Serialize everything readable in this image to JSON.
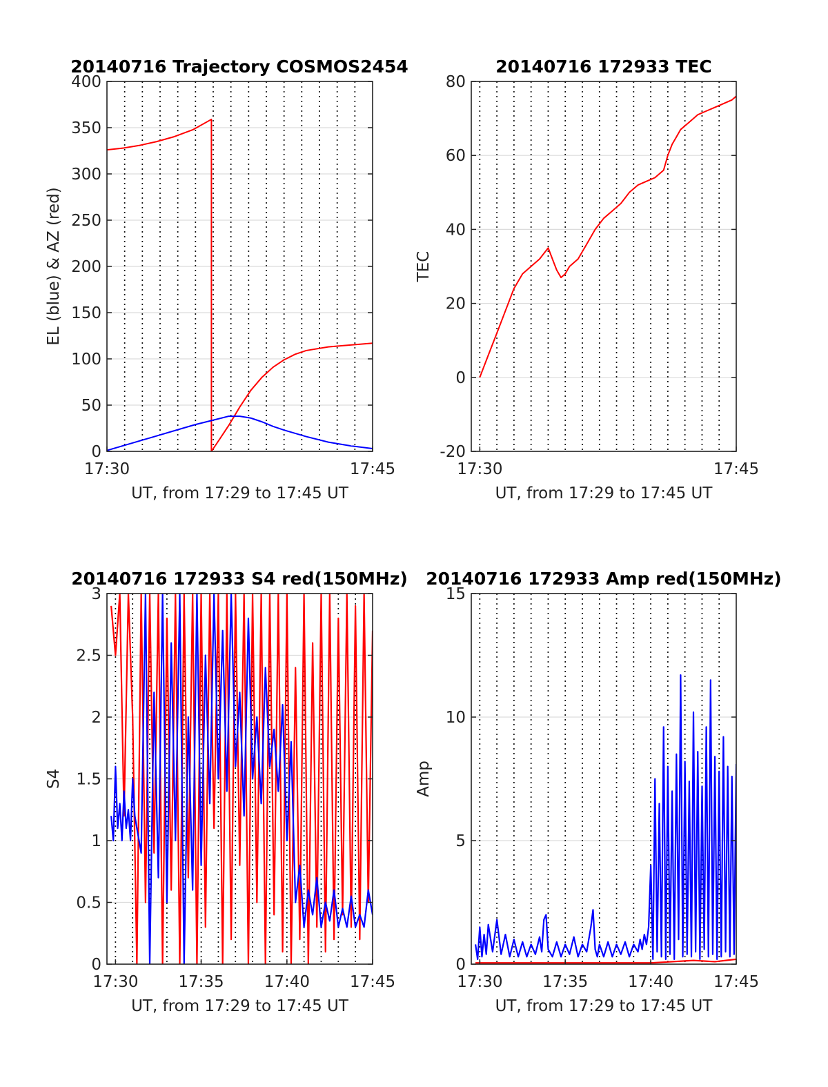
{
  "colors": {
    "red": "#ff0000",
    "blue": "#0000ff"
  },
  "chart_data": [
    {
      "type": "line",
      "title": "20140716 Trajectory COSMOS2454",
      "xlabel": "UT, from 17:29 to 17:45 UT",
      "ylabel": "EL (blue) & AZ (red)",
      "xlim": [
        17.5,
        17.75
      ],
      "ylim": [
        0,
        400
      ],
      "xticks": [
        {
          "v": 17.5,
          "label": "17:30"
        },
        {
          "v": 17.75,
          "label": "17:45"
        }
      ],
      "yticks": [
        0,
        50,
        100,
        150,
        200,
        250,
        300,
        350,
        400
      ],
      "grid": true,
      "series": [
        {
          "color": "red",
          "x": [
            17.5,
            17.5156,
            17.5313,
            17.5469,
            17.5625,
            17.5813,
            17.5983,
            17.5983,
            17.6042,
            17.6146,
            17.625,
            17.6354,
            17.6458,
            17.6563,
            17.6667,
            17.6771,
            17.6875,
            17.7083,
            17.7292,
            17.75
          ],
          "y": [
            326,
            328,
            331,
            335,
            340,
            348,
            359,
            0,
            10,
            28,
            48,
            66,
            80,
            91,
            99,
            105,
            109,
            113,
            115,
            117
          ]
        },
        {
          "color": "blue",
          "x": [
            17.5,
            17.5208,
            17.5417,
            17.5625,
            17.5833,
            17.6042,
            17.6146,
            17.625,
            17.6354,
            17.6458,
            17.6563,
            17.6667,
            17.6875,
            17.7083,
            17.7292,
            17.75
          ],
          "y": [
            1,
            8,
            15,
            22,
            29,
            35,
            38,
            38,
            36,
            32,
            27,
            23,
            16,
            10,
            6,
            3
          ]
        }
      ]
    },
    {
      "type": "line",
      "title": "20140716 172933 TEC",
      "xlabel": "UT, from 17:29 to 17:45 UT",
      "ylabel": "TEC",
      "xlim": [
        17.4917,
        17.75
      ],
      "ylim": [
        -20,
        80
      ],
      "xticks": [
        {
          "v": 17.5,
          "label": "17:30"
        },
        {
          "v": 17.75,
          "label": "17:45"
        }
      ],
      "yticks": [
        -20,
        0,
        20,
        40,
        60,
        80
      ],
      "grid": true,
      "series": [
        {
          "color": "red",
          "x": [
            17.5,
            17.5083,
            17.5167,
            17.525,
            17.5333,
            17.5417,
            17.55,
            17.5583,
            17.5667,
            17.5708,
            17.575,
            17.5792,
            17.5833,
            17.5875,
            17.5958,
            17.6042,
            17.6125,
            17.6208,
            17.6292,
            17.6375,
            17.6458,
            17.6542,
            17.6625,
            17.6708,
            17.6792,
            17.6833,
            17.6875,
            17.6917,
            17.6958,
            17.7042,
            17.7125,
            17.7208,
            17.7292,
            17.7375,
            17.7458,
            17.75
          ],
          "y": [
            0,
            6,
            12,
            18,
            24,
            28,
            30,
            32,
            35,
            32,
            29,
            27,
            28,
            30,
            32,
            36,
            40,
            43,
            45,
            47,
            50,
            52,
            53,
            54,
            56,
            60,
            63,
            65,
            67,
            69,
            71,
            72,
            73,
            74,
            75,
            76
          ]
        }
      ]
    },
    {
      "type": "line",
      "title": "20140716 172933 S4 red(150MHz)",
      "xlabel": "UT, from 17:29 to 17:45 UT",
      "ylabel": "S4",
      "xlim": [
        17.4917,
        17.75
      ],
      "ylim": [
        0,
        3
      ],
      "xticks": [
        {
          "v": 17.5,
          "label": "17:30"
        },
        {
          "v": 17.5833,
          "label": "17:35"
        },
        {
          "v": 17.6667,
          "label": "17:40"
        },
        {
          "v": 17.75,
          "label": "17:45"
        }
      ],
      "yticks": [
        0,
        0.5,
        1,
        1.5,
        2,
        2.5,
        3
      ],
      "grid": true,
      "series": [
        {
          "color": "red",
          "x": [
            17.4958,
            17.5,
            17.5042,
            17.5083,
            17.5125,
            17.5167,
            17.5208,
            17.525,
            17.5292,
            17.5333,
            17.5375,
            17.5417,
            17.5458,
            17.55,
            17.5542,
            17.5583,
            17.5625,
            17.5667,
            17.5708,
            17.575,
            17.5792,
            17.5833,
            17.5875,
            17.5917,
            17.5958,
            17.6,
            17.6042,
            17.6083,
            17.6125,
            17.6167,
            17.6208,
            17.625,
            17.6292,
            17.6333,
            17.6375,
            17.6417,
            17.6458,
            17.65,
            17.6542,
            17.6583,
            17.6625,
            17.6667,
            17.6708,
            17.675,
            17.6792,
            17.6833,
            17.6875,
            17.6917,
            17.6958,
            17.7,
            17.7042,
            17.7083,
            17.7125,
            17.7167,
            17.7208,
            17.725,
            17.7292,
            17.7333,
            17.7375,
            17.7417,
            17.7458,
            17.75
          ],
          "y": [
            2.9,
            2.5,
            3,
            1.2,
            3,
            2.0,
            0,
            3,
            0.5,
            3,
            0.9,
            3,
            0,
            2.8,
            0.6,
            3,
            0,
            3,
            0.7,
            3,
            0,
            3,
            0.3,
            3,
            1.1,
            3,
            0,
            3,
            0.2,
            3,
            0.8,
            3,
            0,
            3,
            0.5,
            3,
            0,
            3,
            0.4,
            3,
            0.1,
            3,
            0,
            2.4,
            0.2,
            3,
            0,
            2.6,
            0.3,
            3,
            0.1,
            3,
            0.2,
            2.8,
            0.4,
            3,
            0.3,
            2.9,
            0.2,
            3,
            0.5,
            2.7
          ]
        },
        {
          "color": "blue",
          "x": [
            17.4958,
            17.4979,
            17.5,
            17.5021,
            17.5042,
            17.5063,
            17.5083,
            17.5104,
            17.5125,
            17.5146,
            17.5167,
            17.5188,
            17.5208,
            17.525,
            17.5292,
            17.5333,
            17.5375,
            17.5417,
            17.5458,
            17.55,
            17.5542,
            17.5583,
            17.5625,
            17.5667,
            17.5708,
            17.575,
            17.5792,
            17.5833,
            17.5875,
            17.5917,
            17.5958,
            17.6,
            17.6042,
            17.6083,
            17.6125,
            17.6167,
            17.6208,
            17.625,
            17.6292,
            17.6333,
            17.6375,
            17.6417,
            17.6458,
            17.65,
            17.6542,
            17.6583,
            17.6625,
            17.6667,
            17.6708,
            17.675,
            17.6792,
            17.6833,
            17.6875,
            17.6917,
            17.6958,
            17.7,
            17.7042,
            17.7083,
            17.7125,
            17.7167,
            17.7208,
            17.725,
            17.7292,
            17.7333,
            17.7375,
            17.7417,
            17.7458,
            17.75
          ],
          "y": [
            1.2,
            1.0,
            1.6,
            1.1,
            1.3,
            1.0,
            1.4,
            1.1,
            1.25,
            1.0,
            1.5,
            1.2,
            1.1,
            0.9,
            3,
            0,
            2.2,
            0.7,
            3,
            0.5,
            2.6,
            1.0,
            3,
            0,
            2.0,
            0.6,
            3,
            0.8,
            2.5,
            1.3,
            3,
            1.5,
            2.7,
            1.4,
            3,
            1.6,
            2.2,
            1.2,
            2.8,
            1.5,
            2.0,
            1.3,
            2.4,
            1.6,
            1.9,
            1.4,
            2.1,
            1.0,
            1.8,
            0.5,
            0.8,
            0.3,
            0.6,
            0.4,
            0.7,
            0.3,
            0.5,
            0.35,
            0.6,
            0.3,
            0.45,
            0.3,
            0.55,
            0.3,
            0.4,
            0.3,
            0.6,
            0.4
          ]
        }
      ]
    },
    {
      "type": "line",
      "title": "20140716 172933 Amp red(150MHz)",
      "xlabel": "UT, from 17:29 to 17:45 UT",
      "ylabel": "Amp",
      "xlim": [
        17.4917,
        17.75
      ],
      "ylim": [
        0,
        15
      ],
      "xticks": [
        {
          "v": 17.5,
          "label": "17:30"
        },
        {
          "v": 17.5833,
          "label": "17:35"
        },
        {
          "v": 17.6667,
          "label": "17:40"
        },
        {
          "v": 17.75,
          "label": "17:45"
        }
      ],
      "yticks": [
        0,
        5,
        10,
        15
      ],
      "grid": true,
      "series": [
        {
          "color": "red",
          "x": [
            17.4958,
            17.6667,
            17.6875,
            17.7083,
            17.7292,
            17.75
          ],
          "y": [
            0.05,
            0.05,
            0.1,
            0.15,
            0.1,
            0.2
          ]
        },
        {
          "color": "blue",
          "x": [
            17.4958,
            17.4979,
            17.5,
            17.5021,
            17.5042,
            17.5063,
            17.5083,
            17.5125,
            17.5167,
            17.5208,
            17.525,
            17.5292,
            17.5333,
            17.5375,
            17.5417,
            17.5458,
            17.55,
            17.5542,
            17.5583,
            17.5604,
            17.5625,
            17.5646,
            17.5667,
            17.5708,
            17.575,
            17.5792,
            17.5833,
            17.5875,
            17.5917,
            17.5958,
            17.6,
            17.6042,
            17.6083,
            17.6104,
            17.6125,
            17.6146,
            17.6167,
            17.6208,
            17.625,
            17.6292,
            17.6333,
            17.6375,
            17.6417,
            17.6458,
            17.65,
            17.6542,
            17.6563,
            17.6583,
            17.6604,
            17.6625,
            17.6646,
            17.6667,
            17.6688,
            17.6708,
            17.6729,
            17.675,
            17.6771,
            17.6792,
            17.6813,
            17.6833,
            17.6854,
            17.6875,
            17.6896,
            17.6917,
            17.6938,
            17.6958,
            17.6979,
            17.7,
            17.7021,
            17.7042,
            17.7063,
            17.7083,
            17.7104,
            17.7125,
            17.7146,
            17.7167,
            17.7188,
            17.7208,
            17.7229,
            17.725,
            17.7271,
            17.7292,
            17.7313,
            17.7333,
            17.7354,
            17.7375,
            17.7396,
            17.7417,
            17.7438,
            17.7458,
            17.7479,
            17.75
          ],
          "y": [
            0.8,
            0.2,
            1.5,
            0.3,
            1.2,
            0.4,
            1.6,
            0.5,
            1.8,
            0.4,
            1.2,
            0.3,
            1.0,
            0.3,
            0.9,
            0.3,
            0.8,
            0.4,
            1.1,
            0.5,
            1.8,
            2.0,
            0.6,
            0.3,
            0.9,
            0.3,
            0.8,
            0.4,
            1.1,
            0.3,
            0.8,
            0.5,
            1.5,
            2.2,
            0.6,
            0.3,
            0.8,
            0.3,
            0.9,
            0.3,
            0.8,
            0.4,
            0.9,
            0.3,
            0.8,
            0.5,
            1.0,
            0.6,
            1.2,
            0.8,
            1.5,
            4,
            0.2,
            7.5,
            0.5,
            6.5,
            0.3,
            9.6,
            0.2,
            8.0,
            0.4,
            7.0,
            0.2,
            8.5,
            1.0,
            11.7,
            0.3,
            8.2,
            0.4,
            7.4,
            0.3,
            10.2,
            0.5,
            8.6,
            0.2,
            7.2,
            0.6,
            9.6,
            0.3,
            11.5,
            0.4,
            8.4,
            0.2,
            7.8,
            0.3,
            9.2,
            0.5,
            8.0,
            0.3,
            7.6,
            0.4,
            8.1
          ]
        }
      ]
    }
  ]
}
